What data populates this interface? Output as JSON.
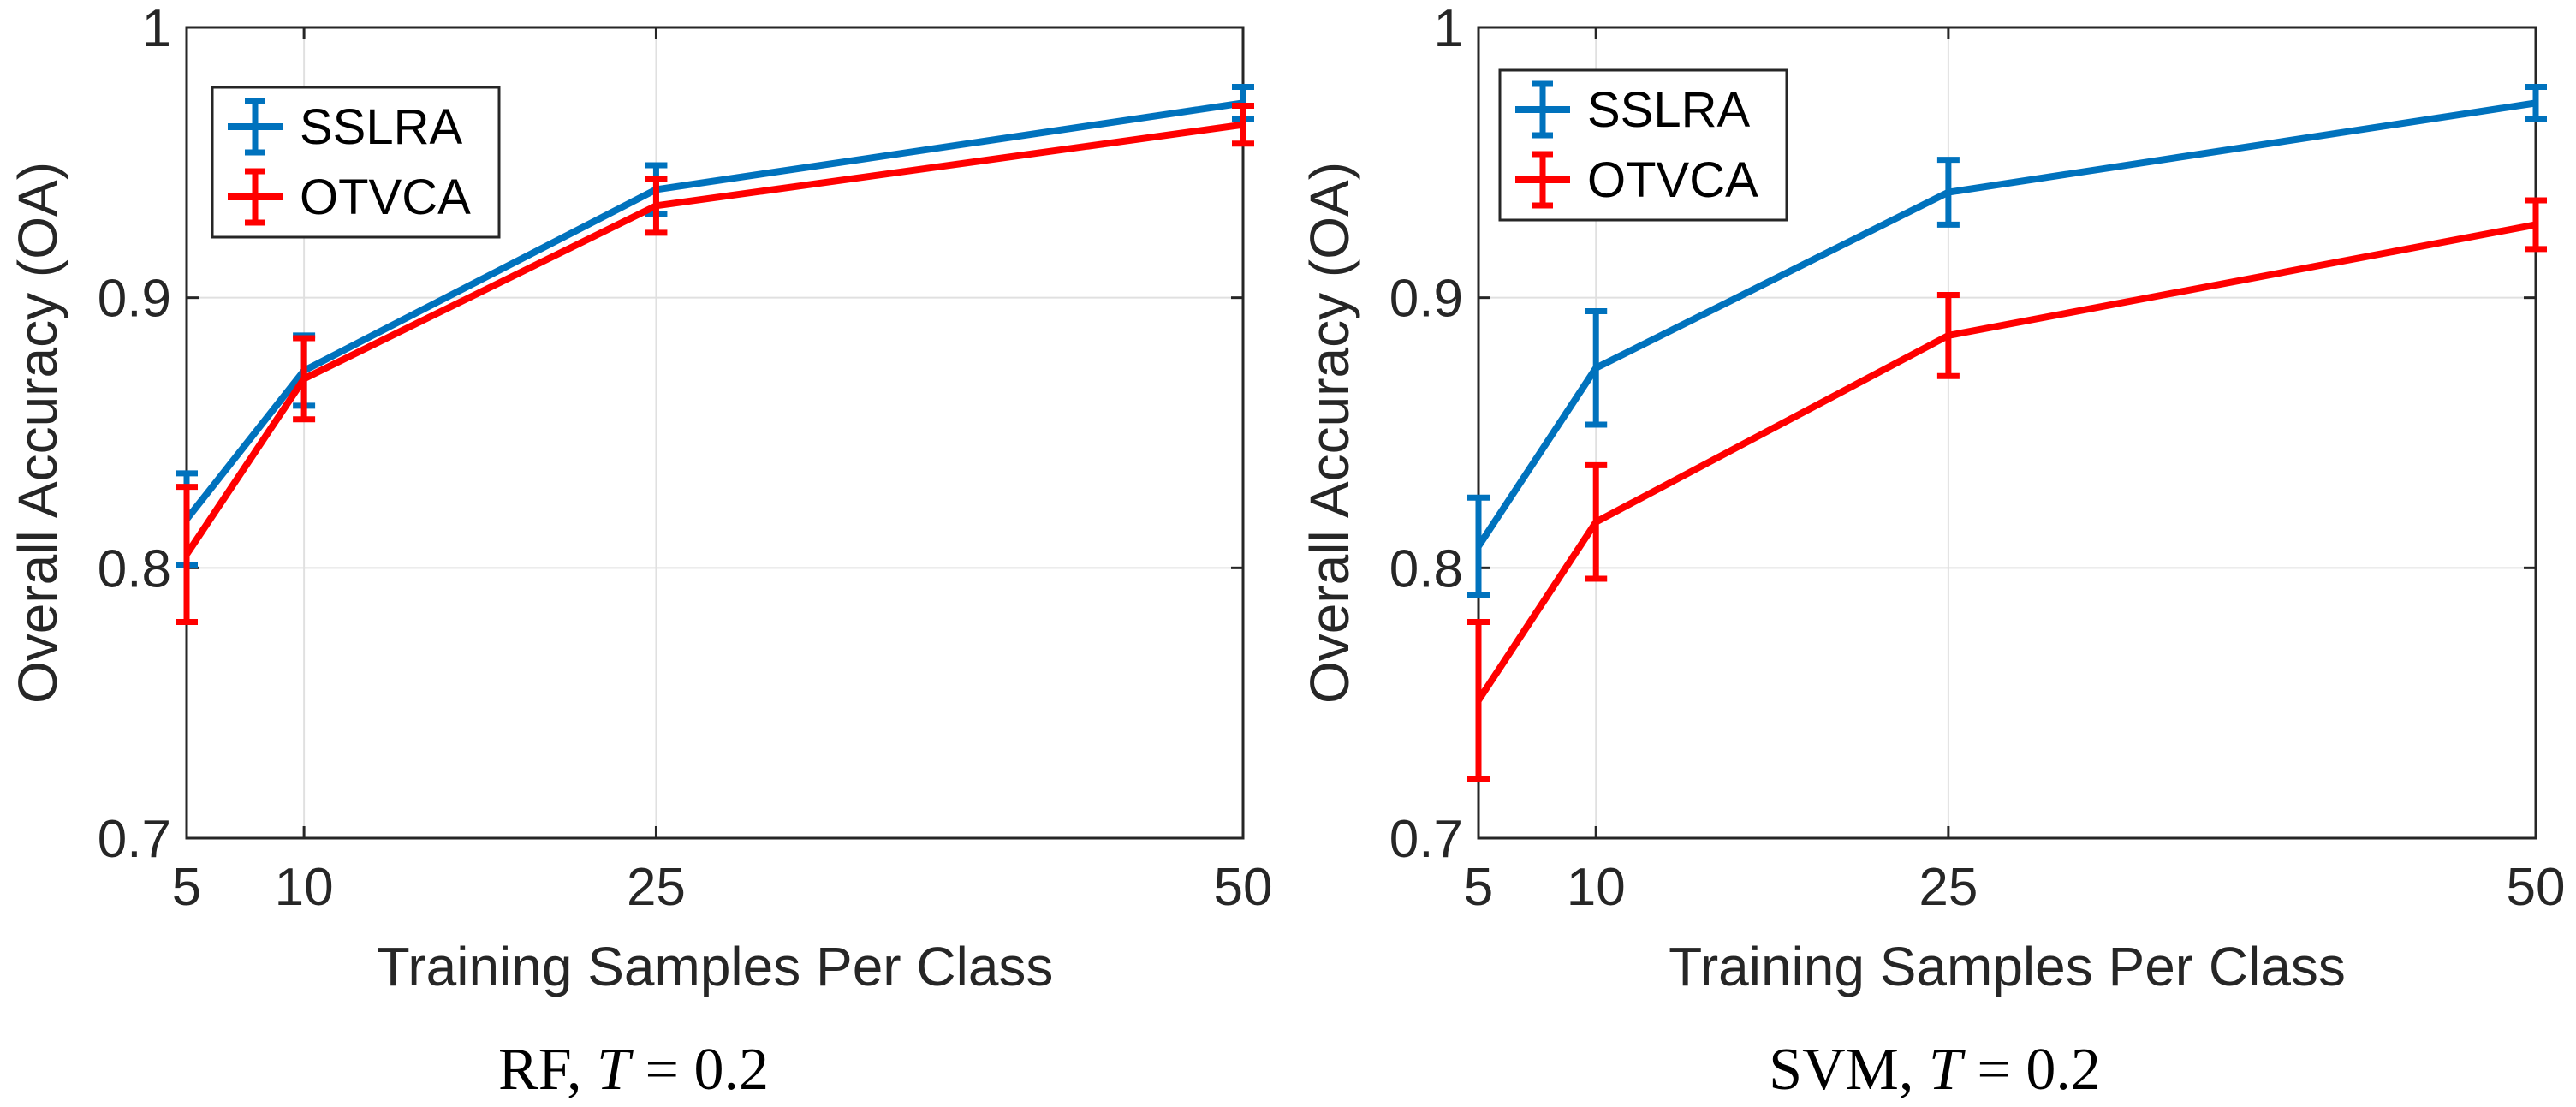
{
  "chart_data": [
    {
      "type": "line",
      "caption": {
        "prefix": "RF, ",
        "var": "T",
        "rest": " = 0.2"
      },
      "xlabel": "Training Samples Per Class",
      "ylabel": "Overall Accuracy (OA)",
      "x": [
        5,
        10,
        25,
        50
      ],
      "xticks": [
        "5",
        "10",
        "25",
        "50"
      ],
      "yticks": [
        "0.7",
        "0.8",
        "0.9",
        "1"
      ],
      "xlim": [
        5,
        50
      ],
      "ylim": [
        0.7,
        1.0
      ],
      "grid": true,
      "legend_position": "top-left",
      "series": [
        {
          "name": "SSLRA",
          "color": "#0072BD",
          "values": [
            0.818,
            0.873,
            0.94,
            0.972
          ],
          "errors": [
            0.017,
            0.013,
            0.009,
            0.006
          ]
        },
        {
          "name": "OTVCA",
          "color": "#FF0000",
          "values": [
            0.805,
            0.87,
            0.934,
            0.964
          ],
          "errors": [
            0.025,
            0.015,
            0.01,
            0.007
          ]
        }
      ]
    },
    {
      "type": "line",
      "caption": {
        "prefix": "SVM, ",
        "var": "T",
        "rest": " = 0.2"
      },
      "xlabel": "Training Samples Per Class",
      "ylabel": "Overall Accuracy (OA)",
      "x": [
        5,
        10,
        25,
        50
      ],
      "xticks": [
        "5",
        "10",
        "25",
        "50"
      ],
      "yticks": [
        "0.7",
        "0.8",
        "0.9",
        "1"
      ],
      "xlim": [
        5,
        50
      ],
      "ylim": [
        0.7,
        1.0
      ],
      "grid": true,
      "legend_position": "top-left",
      "series": [
        {
          "name": "SSLRA",
          "color": "#0072BD",
          "values": [
            0.808,
            0.874,
            0.939,
            0.972
          ],
          "errors": [
            0.018,
            0.021,
            0.012,
            0.006
          ]
        },
        {
          "name": "OTVCA",
          "color": "#FF0000",
          "values": [
            0.751,
            0.817,
            0.886,
            0.927
          ],
          "errors": [
            0.029,
            0.021,
            0.015,
            0.009
          ]
        }
      ]
    }
  ]
}
